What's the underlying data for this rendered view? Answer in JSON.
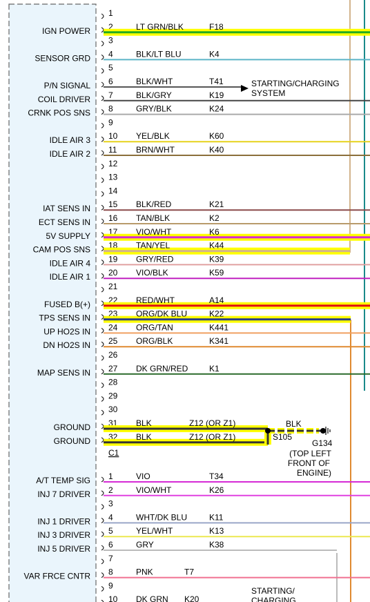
{
  "connector_c1": {
    "label": "C1",
    "pins": [
      {
        "pin": "1",
        "func": "",
        "color": "",
        "circuit": "",
        "wire": "",
        "hl": false
      },
      {
        "pin": "2",
        "func": "IGN POWER",
        "color": "LT GRN/BLK",
        "circuit": "F18",
        "wire": "#22aa22",
        "hl": true
      },
      {
        "pin": "3",
        "func": "",
        "color": "",
        "circuit": "",
        "wire": "",
        "hl": false
      },
      {
        "pin": "4",
        "func": "SENSOR GRD",
        "color": "BLK/LT BLU",
        "circuit": "K4",
        "wire": "#5bb5c8",
        "hl": false
      },
      {
        "pin": "5",
        "func": "",
        "color": "",
        "circuit": "",
        "wire": "",
        "hl": false
      },
      {
        "pin": "6",
        "func": "P/N SIGNAL",
        "color": "BLK/WHT",
        "circuit": "T41",
        "wire": "#555555",
        "hl": false,
        "arrow": true
      },
      {
        "pin": "7",
        "func": "COIL DRIVER",
        "color": "BLK/GRY",
        "circuit": "K19",
        "wire": "#444444",
        "hl": false
      },
      {
        "pin": "8",
        "func": "CRNK POS SNS",
        "color": "GRY/BLK",
        "circuit": "K24",
        "wire": "#aaaaaa",
        "hl": false
      },
      {
        "pin": "9",
        "func": "",
        "color": "",
        "circuit": "",
        "wire": "",
        "hl": false
      },
      {
        "pin": "10",
        "func": "IDLE AIR 3",
        "color": "YEL/BLK",
        "circuit": "K60",
        "wire": "#e6d21c",
        "hl": false
      },
      {
        "pin": "11",
        "func": "IDLE AIR 2",
        "color": "BRN/WHT",
        "circuit": "K40",
        "wire": "#8b6f3a",
        "hl": false
      },
      {
        "pin": "12",
        "func": "",
        "color": "",
        "circuit": "",
        "wire": "",
        "hl": false
      },
      {
        "pin": "13",
        "func": "",
        "color": "",
        "circuit": "",
        "wire": "",
        "hl": false
      },
      {
        "pin": "14",
        "func": "",
        "color": "",
        "circuit": "",
        "wire": "",
        "hl": false
      },
      {
        "pin": "15",
        "func": "IAT SENS IN",
        "color": "BLK/RED",
        "circuit": "K21",
        "wire": "#8a4a4a",
        "hl": false
      },
      {
        "pin": "16",
        "func": "ECT SENS IN",
        "color": "TAN/BLK",
        "circuit": "K2",
        "wire": "#b89a6a",
        "hl": false
      },
      {
        "pin": "17",
        "func": "5V SUPPLY",
        "color": "VIO/WHT",
        "circuit": "K6",
        "wire": "#d52ad5",
        "hl": true
      },
      {
        "pin": "18",
        "func": "CAM POS SNS",
        "color": "TAN/YEL",
        "circuit": "K44",
        "wire": "#d2b48c",
        "hl": true
      },
      {
        "pin": "19",
        "func": "IDLE AIR 4",
        "color": "GRY/RED",
        "circuit": "K39",
        "wire": "#e0a0a0",
        "hl": false
      },
      {
        "pin": "20",
        "func": "IDLE AIR 1",
        "color": "VIO/BLK",
        "circuit": "K59",
        "wire": "#c020c0",
        "hl": false
      },
      {
        "pin": "21",
        "func": "",
        "color": "",
        "circuit": "",
        "wire": "",
        "hl": false
      },
      {
        "pin": "22",
        "func": "FUSED B(+)",
        "color": "RED/WHT",
        "circuit": "A14",
        "wire": "#e01010",
        "hl": true
      },
      {
        "pin": "23",
        "func": "TPS SENS IN",
        "color": "ORG/DK BLU",
        "circuit": "K22",
        "wire": "#2a3f8a",
        "hl": true
      },
      {
        "pin": "24",
        "func": "UP HO2S IN",
        "color": "ORG/TAN",
        "circuit": "K441",
        "wire": "#f0a060",
        "hl": false
      },
      {
        "pin": "25",
        "func": "DN HO2S IN",
        "color": "ORG/BLK",
        "circuit": "K341",
        "wire": "#e08a30",
        "hl": false
      },
      {
        "pin": "26",
        "func": "",
        "color": "",
        "circuit": "",
        "wire": "",
        "hl": false
      },
      {
        "pin": "27",
        "func": "MAP SENS IN",
        "color": "DK GRN/RED",
        "circuit": "K1",
        "wire": "#2a6a2a",
        "hl": false
      },
      {
        "pin": "28",
        "func": "",
        "color": "",
        "circuit": "",
        "wire": "",
        "hl": false
      },
      {
        "pin": "29",
        "func": "",
        "color": "",
        "circuit": "",
        "wire": "",
        "hl": false
      },
      {
        "pin": "30",
        "func": "",
        "color": "",
        "circuit": "",
        "wire": "",
        "hl": false
      },
      {
        "pin": "31",
        "func": "GROUND",
        "color": "BLK",
        "circuit": "Z12 (OR Z1)",
        "wire": "#333333",
        "hl": true,
        "ground": true
      },
      {
        "pin": "32",
        "func": "GROUND",
        "color": "BLK",
        "circuit": "Z12 (OR Z1)",
        "wire": "#333333",
        "hl": true,
        "ground": true
      }
    ]
  },
  "connector_c2": {
    "pins": [
      {
        "pin": "1",
        "func": "A/T TEMP SIG",
        "color": "VIO",
        "circuit": "T34",
        "wire": "#d52ad5",
        "hl": false
      },
      {
        "pin": "2",
        "func": "INJ 7 DRIVER",
        "color": "VIO/WHT",
        "circuit": "K26",
        "wire": "#e040e0",
        "hl": false
      },
      {
        "pin": "3",
        "func": "",
        "color": "",
        "circuit": "",
        "wire": "",
        "hl": false
      },
      {
        "pin": "4",
        "func": "INJ 1 DRIVER",
        "color": "WHT/DK BLU",
        "circuit": "K11",
        "wire": "#9aa6c8",
        "hl": false
      },
      {
        "pin": "5",
        "func": "INJ 3 DRIVER",
        "color": "YEL/WHT",
        "circuit": "K13",
        "wire": "#ece850",
        "hl": false
      },
      {
        "pin": "6",
        "func": "INJ 5 DRIVER",
        "color": "GRY",
        "circuit": "K38",
        "wire": "#bbbbbb",
        "hl": false
      },
      {
        "pin": "7",
        "func": "",
        "color": "",
        "circuit": "",
        "wire": "",
        "hl": false
      },
      {
        "pin": "8",
        "func": "VAR FRCE CNTR",
        "color": "PNK",
        "circuit": "T7",
        "wire": "#f07090",
        "hl": false
      },
      {
        "pin": "9",
        "func": "",
        "color": "",
        "circuit": "",
        "wire": "",
        "hl": false
      },
      {
        "pin": "10",
        "func": "",
        "color": "DK GRN",
        "circuit": "K20",
        "wire": "#2a6a2a",
        "hl": false
      }
    ]
  },
  "annotations": {
    "starting_charging": [
      "STARTING/CHARGING",
      "SYSTEM"
    ],
    "starting_charging_bottom": [
      "STARTING/",
      "CHARGING"
    ],
    "splice": "S105",
    "ground_wire_color": "BLK",
    "ground_point": "G134",
    "ground_location": [
      "(TOP LEFT",
      "FRONT OF",
      "ENGINE)"
    ]
  },
  "colors": {
    "module_fill": "#eaf5fc",
    "highlight": "#ffff00",
    "ground_wire": "#333333"
  }
}
